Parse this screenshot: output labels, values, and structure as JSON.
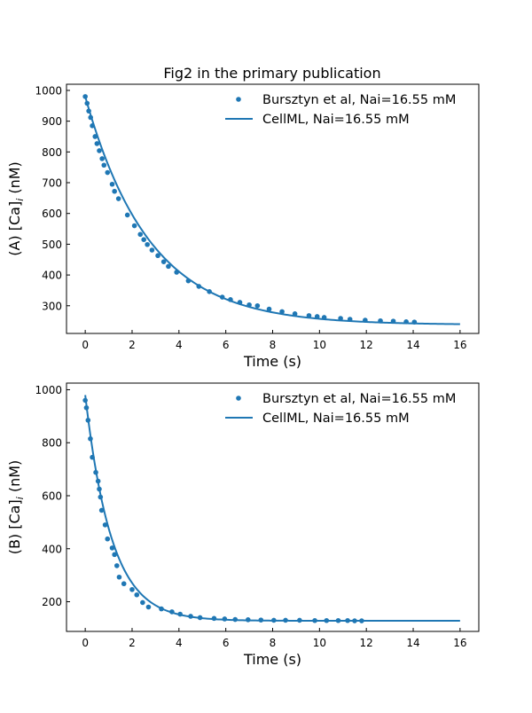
{
  "title": "Fig2 in the primary publication",
  "colors": {
    "series": "#1f77b4",
    "axes": "#000000",
    "background": "#ffffff"
  },
  "chart_data": [
    {
      "type": "line",
      "panel": "A",
      "title": "Fig2 in the primary publication",
      "xlabel": "Time (s)",
      "ylabel_prefix": "(A) [Ca]",
      "ylabel_sub": "i",
      "ylabel_suffix": " (nM)",
      "xlim": [
        -0.8,
        16.8
      ],
      "ylim": [
        210,
        1020
      ],
      "xticks": [
        0,
        2,
        4,
        6,
        8,
        10,
        12,
        14,
        16
      ],
      "xtick_labels": [
        "0",
        "2",
        "4",
        "6",
        "8",
        "10",
        "12",
        "14",
        "16"
      ],
      "yticks": [
        300,
        400,
        500,
        600,
        700,
        800,
        900,
        1000
      ],
      "ytick_labels": [
        "300",
        "400",
        "500",
        "600",
        "700",
        "800",
        "900",
        "1000"
      ],
      "grid": false,
      "legend_position": "top-right",
      "series": [
        {
          "name": "Bursztyn et al, Nai=16.55 mM",
          "kind": "markers",
          "x": [
            0.0,
            0.08,
            0.15,
            0.23,
            0.3,
            0.42,
            0.5,
            0.6,
            0.72,
            0.8,
            0.95,
            1.15,
            1.25,
            1.42,
            1.8,
            2.1,
            2.35,
            2.5,
            2.65,
            2.85,
            3.1,
            3.35,
            3.55,
            3.9,
            4.4,
            4.85,
            5.3,
            5.85,
            6.2,
            6.6,
            7.0,
            7.35,
            7.85,
            8.4,
            8.95,
            9.55,
            9.9,
            10.2,
            10.9,
            11.3,
            11.95,
            12.6,
            13.15,
            13.7,
            14.05
          ],
          "y": [
            980,
            958,
            933,
            912,
            885,
            850,
            827,
            804,
            778,
            757,
            733,
            695,
            672,
            648,
            595,
            560,
            532,
            515,
            499,
            481,
            463,
            443,
            428,
            409,
            381,
            363,
            346,
            328,
            320,
            311,
            303,
            300,
            289,
            281,
            274,
            268,
            265,
            262,
            259,
            256,
            253,
            251,
            250,
            248,
            247
          ]
        },
        {
          "name": "CellML, Nai=16.55 mM",
          "kind": "line",
          "model": {
            "baseline": 238,
            "amplitude": 742,
            "tau": 2.75
          },
          "x_range": [
            0,
            16
          ]
        }
      ]
    },
    {
      "type": "line",
      "panel": "B",
      "title": "",
      "xlabel": "Time (s)",
      "ylabel_prefix": "(B) [Ca]",
      "ylabel_sub": "i",
      "ylabel_suffix": " (nM)",
      "xlim": [
        -0.8,
        16.8
      ],
      "ylim": [
        88,
        1025
      ],
      "xticks": [
        0,
        2,
        4,
        6,
        8,
        10,
        12,
        14,
        16
      ],
      "xtick_labels": [
        "0",
        "2",
        "4",
        "6",
        "8",
        "10",
        "12",
        "14",
        "16"
      ],
      "yticks": [
        200,
        400,
        600,
        800,
        1000
      ],
      "ytick_labels": [
        "200",
        "400",
        "600",
        "800",
        "1000"
      ],
      "grid": false,
      "legend_position": "top-right",
      "series": [
        {
          "name": "Bursztyn et al, Nai=16.55 mM",
          "kind": "markers",
          "x": [
            0.0,
            0.05,
            0.12,
            0.22,
            0.3,
            0.45,
            0.55,
            0.6,
            0.65,
            0.7,
            0.85,
            0.95,
            1.15,
            1.25,
            1.35,
            1.45,
            1.65,
            2.0,
            2.2,
            2.45,
            2.7,
            3.25,
            3.7,
            4.05,
            4.5,
            4.9,
            5.5,
            5.95,
            6.4,
            6.95,
            7.5,
            8.05,
            8.55,
            9.15,
            9.8,
            10.3,
            10.8,
            11.2,
            11.5,
            11.8
          ],
          "y": [
            960,
            932,
            885,
            815,
            745,
            688,
            655,
            625,
            595,
            545,
            490,
            437,
            403,
            378,
            336,
            293,
            268,
            246,
            226,
            197,
            180,
            173,
            162,
            153,
            145,
            140,
            137,
            135,
            133,
            132,
            131,
            130,
            130,
            130,
            129,
            129,
            129,
            129,
            128,
            128
          ]
        },
        {
          "name": "CellML, Nai=16.55 mM",
          "kind": "line",
          "model": {
            "baseline": 128,
            "amplitude": 852,
            "tau": 1.12
          },
          "x_range": [
            0,
            16
          ]
        }
      ]
    }
  ]
}
